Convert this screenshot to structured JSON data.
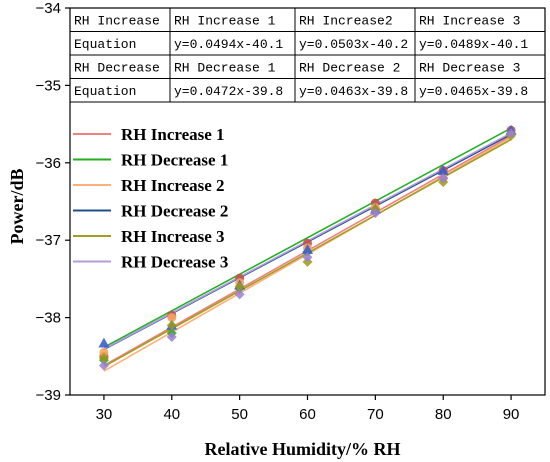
{
  "chart_data": {
    "type": "scatter",
    "xlabel": "Relative Humidity/% RH",
    "ylabel": "Power/dB",
    "xlim": [
      25,
      95
    ],
    "ylim": [
      -39,
      -34
    ],
    "xticks": [
      30,
      40,
      50,
      60,
      70,
      80,
      90
    ],
    "yticks": [
      -34,
      -35,
      -36,
      -37,
      -38,
      -39
    ],
    "grid": false,
    "legend_position": "center-left",
    "table": [
      [
        "RH Increase",
        "RH Increase 1",
        "RH Increase2",
        "RH Increase 3"
      ],
      [
        "Equation",
        "y=0.0494x-40.1",
        "y=0.0503x-40.2",
        "y=0.0489x-40.1"
      ],
      [
        "RH Decrease",
        "RH Decrease 1",
        "RH Decrease 2",
        "RH Decrease 3"
      ],
      [
        "Equation",
        "y=0.0472x-39.8",
        "y=0.0463x-39.8",
        "y=0.0465x-39.8"
      ]
    ],
    "series": [
      {
        "name": "RH Increase 1",
        "color": "#f08080",
        "marker_color": "#c0504d",
        "marker": "circle",
        "x": [
          30,
          40,
          50,
          60,
          70,
          80,
          90
        ],
        "y": [
          -38.5,
          -37.97,
          -37.49,
          -37.04,
          -36.52,
          -36.1,
          -35.58
        ],
        "fit": {
          "slope": 0.0494,
          "intercept": -40.1
        }
      },
      {
        "name": "RH Decrease 1",
        "color": "#22b022",
        "marker_color": "#2ca02c",
        "marker": "diamond",
        "x": [
          30,
          40,
          50,
          60,
          70,
          80,
          90
        ],
        "y": [
          -38.55,
          -38.2,
          -37.62,
          -37.15,
          -36.6,
          -36.2,
          -35.62
        ],
        "fit": {
          "slope": 0.0472,
          "intercept": -39.8
        }
      },
      {
        "name": "RH Increase 2",
        "color": "#ffb07a",
        "marker_color": "#f4a460",
        "marker": "circle",
        "x": [
          30,
          40,
          50,
          60,
          70,
          80,
          90
        ],
        "y": [
          -38.45,
          -38.0,
          -37.55,
          -37.1,
          -36.58,
          -36.2,
          -35.62
        ],
        "fit": {
          "slope": 0.0503,
          "intercept": -40.2
        }
      },
      {
        "name": "RH Decrease 2",
        "color": "#1f4e8c",
        "marker_color": "#3a5fcd",
        "marker": "triangle",
        "x": [
          30,
          40,
          50,
          60,
          70,
          80,
          90
        ],
        "y": [
          -38.33,
          -38.1,
          -37.58,
          -37.12,
          -36.6,
          -36.1,
          -35.58
        ],
        "fit": {
          "slope": 0.0463,
          "intercept": -39.8
        }
      },
      {
        "name": "RH Increase 3",
        "color": "#a0a020",
        "marker_color": "#9a9a1a",
        "marker": "diamond",
        "x": [
          30,
          40,
          50,
          60,
          70,
          80,
          90
        ],
        "y": [
          -38.52,
          -38.1,
          -37.6,
          -37.28,
          -36.6,
          -36.25,
          -35.65
        ],
        "fit": {
          "slope": 0.0489,
          "intercept": -40.1
        }
      },
      {
        "name": "RH Decrease 3",
        "color": "#b39ddb",
        "marker_color": "#9b7fd4",
        "marker": "diamond",
        "x": [
          30,
          40,
          50,
          60,
          70,
          80,
          90
        ],
        "y": [
          -38.62,
          -38.25,
          -37.7,
          -37.22,
          -36.65,
          -36.2,
          -35.62
        ],
        "fit": {
          "slope": 0.0465,
          "intercept": -39.8
        }
      }
    ]
  }
}
